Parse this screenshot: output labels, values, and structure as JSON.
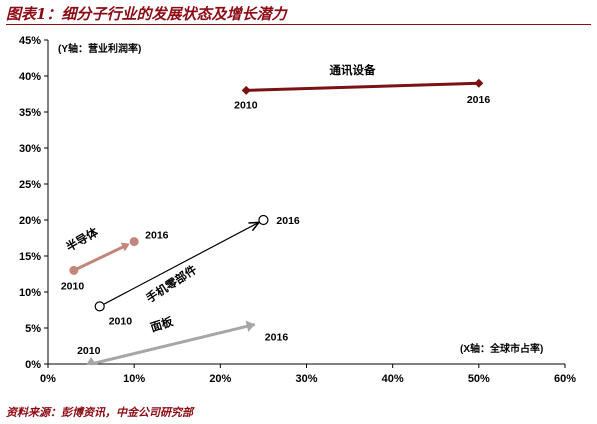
{
  "header": {
    "title": "图表1：细分子行业的发展状态及增长潜力"
  },
  "footer": {
    "source": "资料来源：彭博资讯，中金公司研究部"
  },
  "chart_data": {
    "type": "scatter",
    "title": "",
    "ylabel": "(Y轴：营业利润率)",
    "xlabel": "(X轴：全球市占率)",
    "xlim": [
      0,
      60
    ],
    "ylim": [
      0,
      45
    ],
    "x_ticks": [
      {
        "v": 0,
        "label": "0%"
      },
      {
        "v": 10,
        "label": "10%"
      },
      {
        "v": 20,
        "label": "20%"
      },
      {
        "v": 30,
        "label": "30%"
      },
      {
        "v": 40,
        "label": "40%"
      },
      {
        "v": 50,
        "label": "50%"
      },
      {
        "v": 60,
        "label": "60%"
      }
    ],
    "y_ticks": [
      {
        "v": 0,
        "label": "0%"
      },
      {
        "v": 5,
        "label": "5%"
      },
      {
        "v": 10,
        "label": "10%"
      },
      {
        "v": 15,
        "label": "15%"
      },
      {
        "v": 20,
        "label": "20%"
      },
      {
        "v": 25,
        "label": "25%"
      },
      {
        "v": 30,
        "label": "30%"
      },
      {
        "v": 35,
        "label": "35%"
      },
      {
        "v": 40,
        "label": "40%"
      },
      {
        "v": 45,
        "label": "45%"
      }
    ],
    "grid": false,
    "series": [
      {
        "name": "通讯设备",
        "color": "#7B1113",
        "marker": "diamond",
        "points": [
          {
            "year_label": "2010",
            "x": 23,
            "y": 38
          },
          {
            "year_label": "2016",
            "x": 50,
            "y": 39
          }
        ]
      },
      {
        "name": "半导体",
        "color": "#C0877A",
        "marker": "circle-filled",
        "points": [
          {
            "year_label": "2010",
            "x": 3,
            "y": 13
          },
          {
            "year_label": "2016",
            "x": 10,
            "y": 17
          }
        ]
      },
      {
        "name": "手机零部件",
        "color": "#000000",
        "marker": "circle-open",
        "points": [
          {
            "year_label": "2010",
            "x": 6,
            "y": 8
          },
          {
            "year_label": "2016",
            "x": 25,
            "y": 20
          }
        ]
      },
      {
        "name": "面板",
        "color": "#A6A6A6",
        "marker": "triangle",
        "points": [
          {
            "year_label": "2010",
            "x": 5,
            "y": 0
          },
          {
            "year_label": "2016",
            "x": 24,
            "y": 5.5
          }
        ]
      }
    ]
  }
}
